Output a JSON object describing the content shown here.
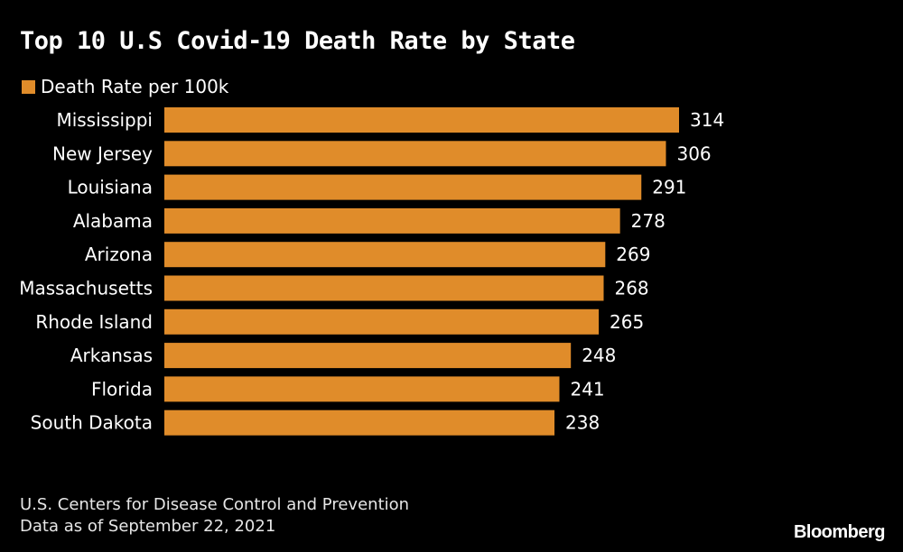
{
  "chart_data": {
    "type": "bar",
    "orientation": "horizontal",
    "title": "Top 10 U.S Covid-19 Death Rate by State",
    "categories": [
      "Mississippi",
      "New Jersey",
      "Louisiana",
      "Alabama",
      "Arizona",
      "Massachusetts",
      "Rhode Island",
      "Arkansas",
      "Florida",
      "South Dakota"
    ],
    "series": [
      {
        "name": "Death Rate per 100k",
        "values": [
          314,
          306,
          291,
          278,
          269,
          268,
          265,
          248,
          241,
          238
        ],
        "color": "#e08c2a"
      }
    ],
    "data_labels": [
      "314",
      "306",
      "291",
      "278",
      "269",
      "268",
      "265",
      "248",
      "241",
      "238"
    ],
    "xlim": [
      0,
      314
    ],
    "grid": false,
    "legend": "top-left"
  },
  "source": {
    "line1": "U.S. Centers for Disease Control and Prevention",
    "line2": "Data as of September 22, 2021"
  },
  "brand": "Bloomberg",
  "colors": {
    "background": "#000000",
    "bar": "#e08c2a",
    "text": "#ffffff"
  }
}
